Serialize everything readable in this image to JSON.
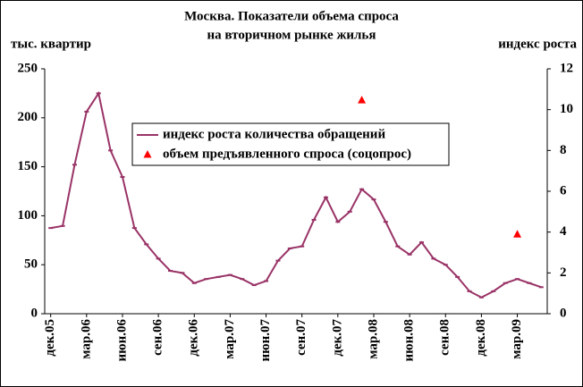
{
  "chart_data": {
    "type": "line",
    "title": "Москва. Показатели объема спроса",
    "subtitle": "на вторичном рынке жилья",
    "y_label": "тыс. квартир",
    "y2_label": "индекс роста",
    "categories": [
      "дек.05",
      null,
      null,
      "мар.06",
      null,
      null,
      "июн.06",
      null,
      null,
      "сен.06",
      null,
      null,
      "дек.06",
      null,
      null,
      "мар.07",
      null,
      null,
      "июн.07",
      null,
      null,
      "сен.07",
      null,
      null,
      "дек.07",
      null,
      null,
      "мар.08",
      null,
      null,
      "июн.08",
      null,
      null,
      "сен.08",
      null,
      null,
      "дек.08",
      null,
      null,
      "мар.09",
      null,
      null
    ],
    "series": [
      {
        "name": "индекс роста количества обращений",
        "color": "#993366",
        "axis": "y2",
        "values": [
          4.2,
          4.3,
          7.3,
          9.9,
          10.8,
          8.0,
          6.7,
          4.2,
          3.4,
          2.7,
          2.1,
          2.0,
          1.5,
          1.7,
          1.8,
          1.9,
          1.7,
          1.4,
          1.6,
          2.6,
          3.2,
          3.3,
          4.6,
          5.7,
          4.5,
          5.0,
          6.1,
          5.6,
          4.5,
          3.3,
          2.9,
          3.5,
          2.7,
          2.4,
          1.8,
          1.1,
          0.8,
          1.1,
          1.5,
          1.7,
          1.5,
          1.3
        ]
      },
      {
        "name": "объем предъявленного спроса (соцопрос)",
        "color": "#ff0000",
        "marker": "triangle",
        "values": [
          null,
          null,
          null,
          null,
          null,
          null,
          null,
          null,
          null,
          null,
          null,
          null,
          null,
          null,
          null,
          null,
          null,
          null,
          null,
          null,
          null,
          null,
          null,
          null,
          null,
          null,
          218,
          null,
          null,
          null,
          null,
          null,
          null,
          null,
          null,
          null,
          null,
          null,
          null,
          81,
          null,
          null
        ]
      }
    ],
    "ylim": [
      0,
      250
    ],
    "yticks": [
      0,
      50,
      100,
      150,
      200,
      250
    ],
    "y2lim": [
      0,
      12
    ],
    "y2ticks": [
      0,
      2,
      4,
      6,
      8,
      10,
      12
    ]
  }
}
